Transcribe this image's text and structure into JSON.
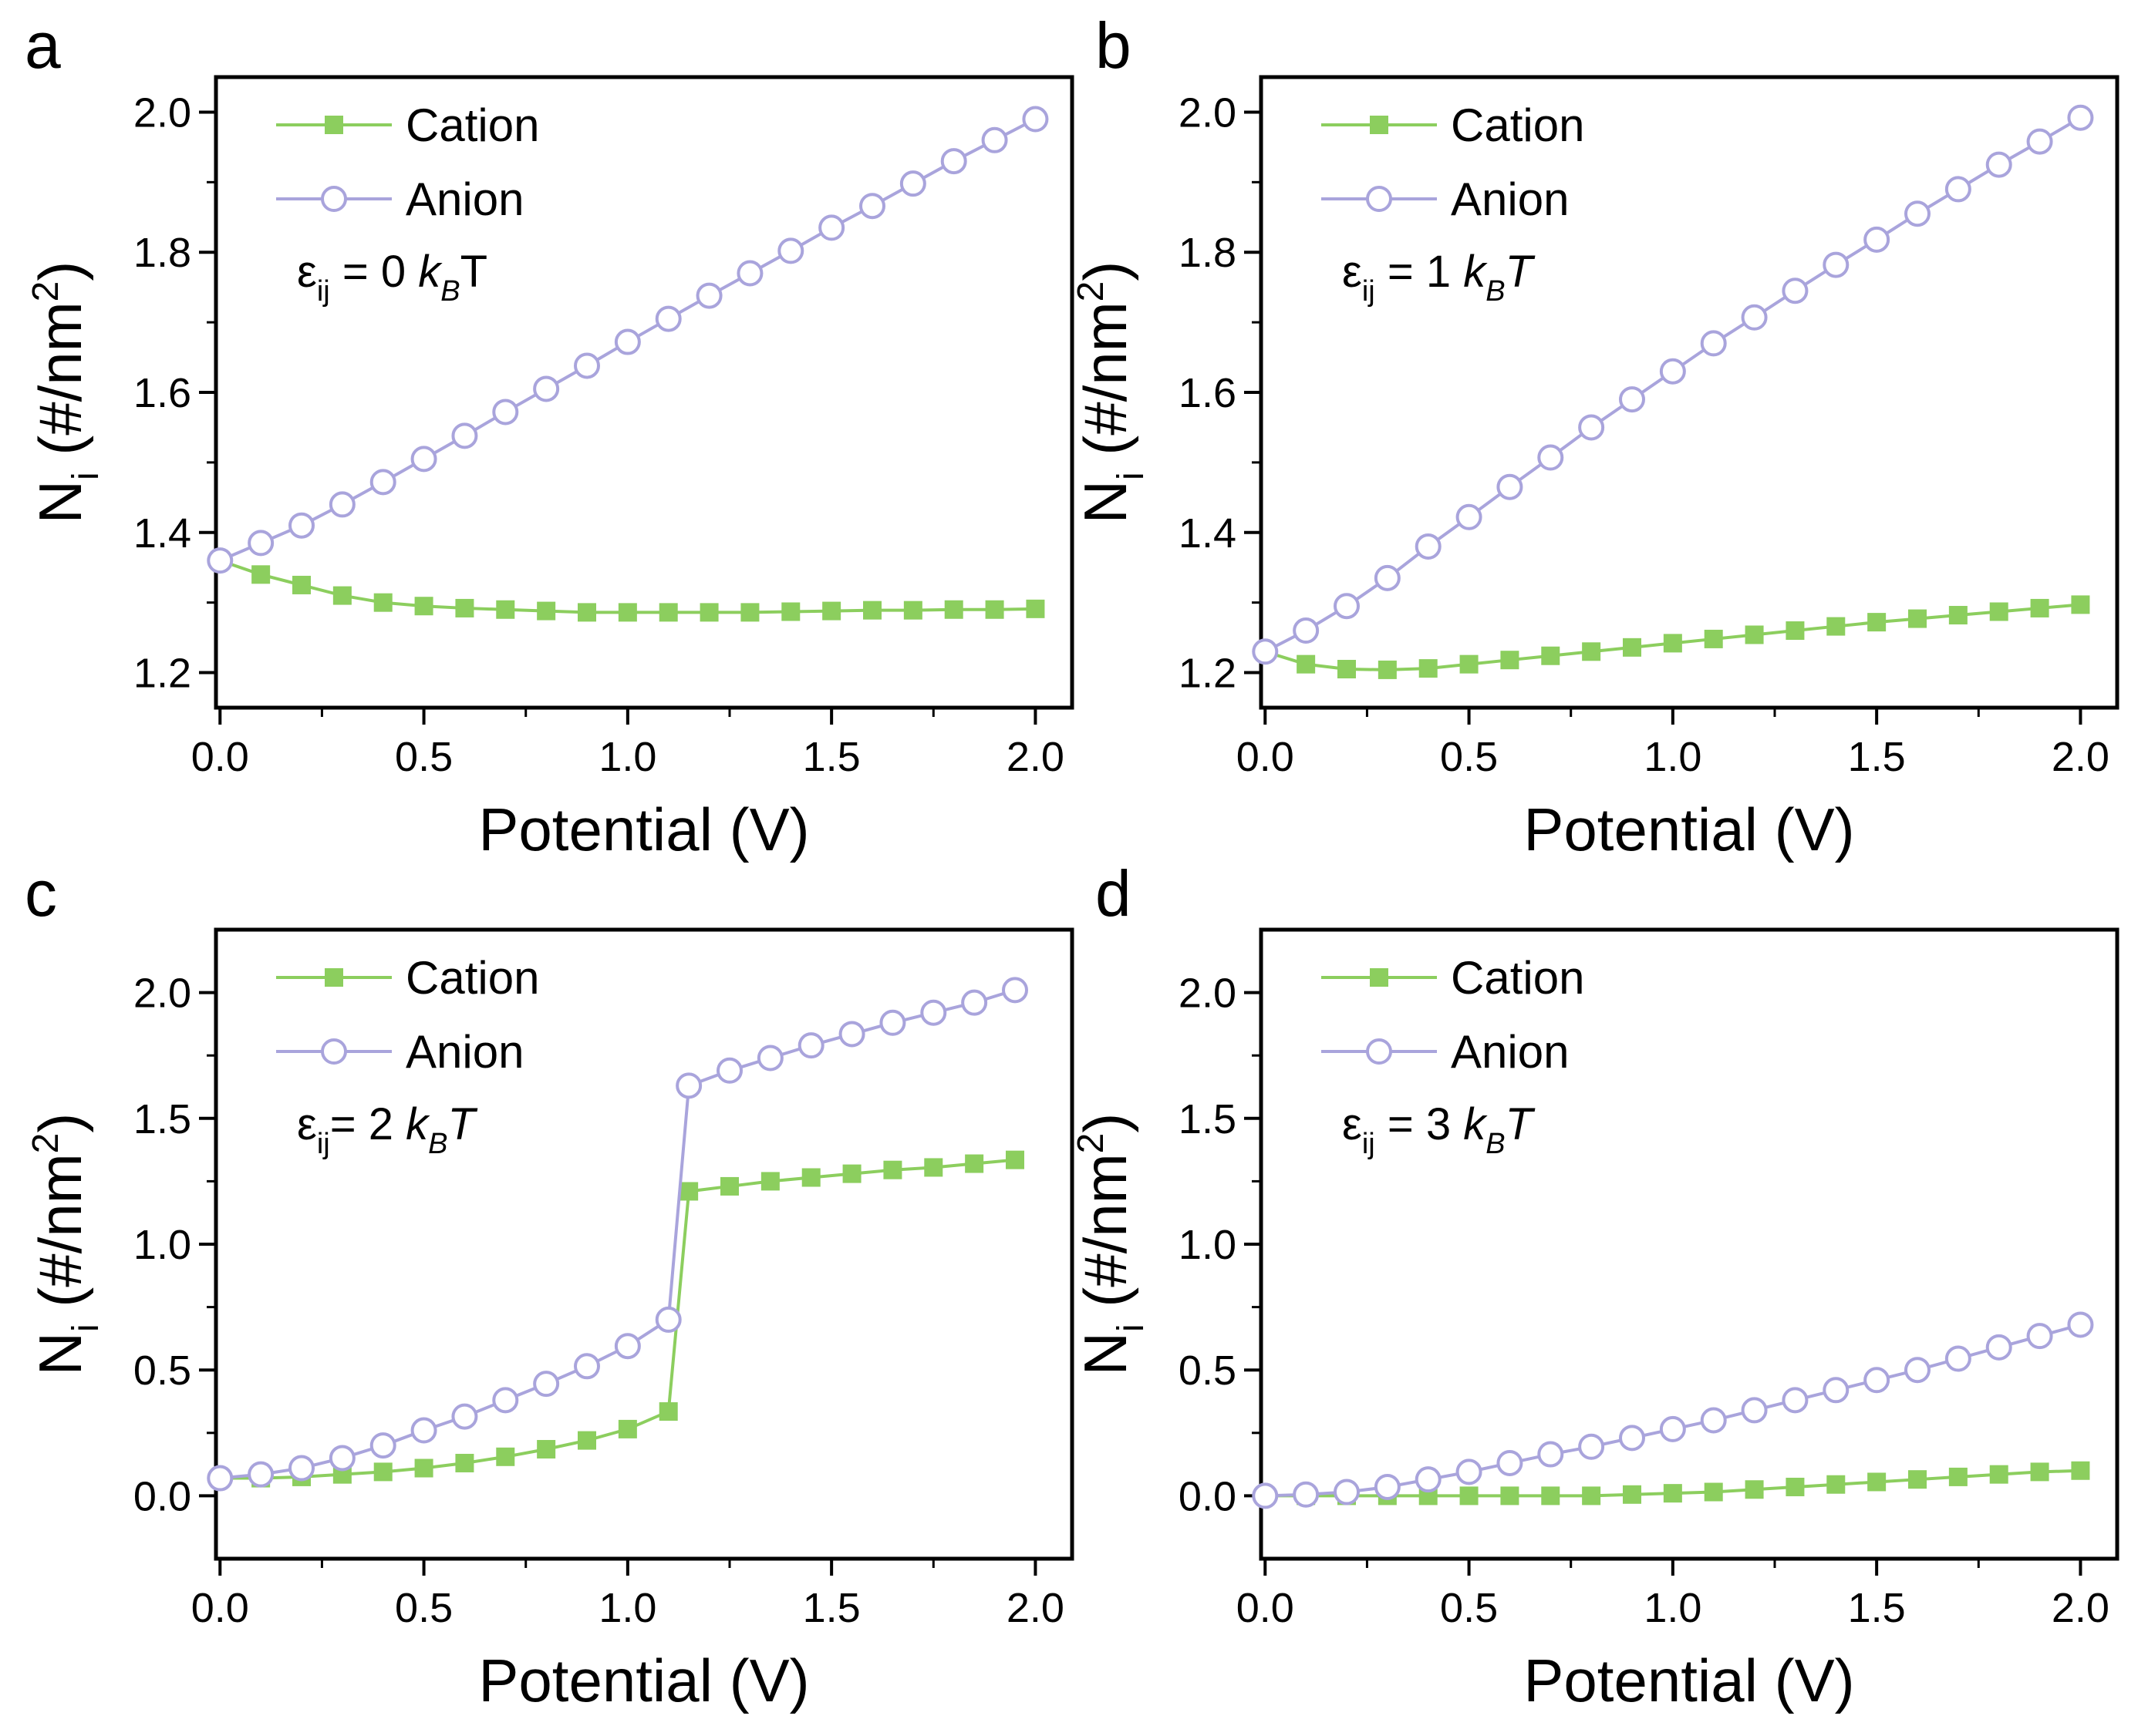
{
  "chart_data": [
    {
      "type": "line",
      "panel": "a",
      "xlabel": "Potential (V)",
      "ylabel": "N_i (#/nm^2)",
      "ylabel_main": "N",
      "ylabel_sub": "i",
      "ylabel_unit": " (#/nm",
      "ylabel_sup": "2",
      "ylabel_close": ")",
      "xlim": [
        -0.01,
        2.09
      ],
      "ylim": [
        1.15,
        2.05
      ],
      "xticks": [
        "0.0",
        "0.5",
        "1.0",
        "1.5",
        "2.0"
      ],
      "yticks": [
        "1.2",
        "1.4",
        "1.6",
        "1.8",
        "2.0"
      ],
      "annotation": {
        "eps": "ε",
        "sub": "ij",
        "eq": " = 0 ",
        "k": "k",
        "ksub": "B",
        "t": "T",
        "t_italic": false
      },
      "series": [
        {
          "name": "Cation",
          "marker": "filled-square",
          "color": "#8cce5e",
          "x": [
            0.0,
            0.1,
            0.2,
            0.3,
            0.4,
            0.5,
            0.6,
            0.7,
            0.8,
            0.9,
            1.0,
            1.1,
            1.2,
            1.3,
            1.4,
            1.5,
            1.6,
            1.7,
            1.8,
            1.9,
            2.0
          ],
          "y": [
            1.36,
            1.34,
            1.325,
            1.31,
            1.3,
            1.295,
            1.292,
            1.29,
            1.288,
            1.286,
            1.286,
            1.286,
            1.286,
            1.286,
            1.287,
            1.288,
            1.289,
            1.289,
            1.29,
            1.29,
            1.291
          ]
        },
        {
          "name": "Anion",
          "marker": "open-circle",
          "color": "#a9a4dc",
          "x": [
            0.0,
            0.1,
            0.2,
            0.3,
            0.4,
            0.5,
            0.6,
            0.7,
            0.8,
            0.9,
            1.0,
            1.1,
            1.2,
            1.3,
            1.4,
            1.5,
            1.6,
            1.7,
            1.8,
            1.9,
            2.0
          ],
          "y": [
            1.36,
            1.385,
            1.41,
            1.44,
            1.472,
            1.505,
            1.538,
            1.572,
            1.605,
            1.638,
            1.672,
            1.705,
            1.738,
            1.77,
            1.802,
            1.835,
            1.866,
            1.898,
            1.93,
            1.96,
            1.99
          ]
        }
      ]
    },
    {
      "type": "line",
      "panel": "b",
      "xlabel": "Potential (V)",
      "ylabel": "N_i (#/nm^2)",
      "ylabel_main": "N",
      "ylabel_sub": "i",
      "ylabel_unit": " (#/nm",
      "ylabel_sup": "2",
      "ylabel_close": ")",
      "xlim": [
        -0.01,
        2.09
      ],
      "ylim": [
        1.15,
        2.05
      ],
      "xticks": [
        "0.0",
        "0.5",
        "1.0",
        "1.5",
        "2.0"
      ],
      "yticks": [
        "1.2",
        "1.4",
        "1.6",
        "1.8",
        "2.0"
      ],
      "annotation": {
        "eps": "ε",
        "sub": "ij",
        "eq": " = 1 ",
        "k": "k",
        "ksub": "B",
        "t": "T",
        "t_italic": true
      },
      "series": [
        {
          "name": "Cation",
          "marker": "filled-square",
          "color": "#8cce5e",
          "x": [
            0.0,
            0.1,
            0.2,
            0.3,
            0.4,
            0.5,
            0.6,
            0.7,
            0.8,
            0.9,
            1.0,
            1.1,
            1.2,
            1.3,
            1.4,
            1.5,
            1.6,
            1.7,
            1.8,
            1.9,
            2.0
          ],
          "y": [
            1.23,
            1.212,
            1.205,
            1.204,
            1.206,
            1.212,
            1.218,
            1.224,
            1.23,
            1.236,
            1.242,
            1.248,
            1.254,
            1.26,
            1.266,
            1.272,
            1.277,
            1.282,
            1.287,
            1.292,
            1.297
          ]
        },
        {
          "name": "Anion",
          "marker": "open-circle",
          "color": "#a9a4dc",
          "x": [
            0.0,
            0.1,
            0.2,
            0.3,
            0.4,
            0.5,
            0.6,
            0.7,
            0.8,
            0.9,
            1.0,
            1.1,
            1.2,
            1.3,
            1.4,
            1.5,
            1.6,
            1.7,
            1.8,
            1.9,
            2.0
          ],
          "y": [
            1.23,
            1.26,
            1.295,
            1.335,
            1.38,
            1.422,
            1.465,
            1.507,
            1.55,
            1.59,
            1.63,
            1.67,
            1.707,
            1.745,
            1.782,
            1.818,
            1.855,
            1.89,
            1.925,
            1.958,
            1.992
          ]
        }
      ]
    },
    {
      "type": "line",
      "panel": "c",
      "xlabel": "Potential (V)",
      "ylabel": "N_i (#/nm^2)",
      "ylabel_main": "N",
      "ylabel_sub": "i",
      "ylabel_unit": " (#/nm",
      "ylabel_sup": "2",
      "ylabel_close": ")",
      "xlim": [
        -0.01,
        2.09
      ],
      "ylim": [
        -0.25,
        2.25
      ],
      "xticks": [
        "0.0",
        "0.5",
        "1.0",
        "1.5",
        "2.0"
      ],
      "yticks": [
        "0.0",
        "0.5",
        "1.0",
        "1.5",
        "2.0"
      ],
      "annotation": {
        "eps": "ε",
        "sub": "ij",
        "eq": "= 2 ",
        "k": "k",
        "ksub": "B",
        "t": "T",
        "t_italic": true
      },
      "series": [
        {
          "name": "Cation",
          "marker": "filled-square",
          "color": "#8cce5e",
          "x": [
            0.0,
            0.1,
            0.2,
            0.3,
            0.4,
            0.5,
            0.6,
            0.7,
            0.8,
            0.9,
            1.0,
            1.1,
            1.15,
            1.25,
            1.35,
            1.45,
            1.55,
            1.65,
            1.75,
            1.85,
            1.95
          ],
          "y": [
            0.07,
            0.07,
            0.075,
            0.085,
            0.095,
            0.11,
            0.13,
            0.155,
            0.185,
            0.22,
            0.265,
            0.335,
            1.21,
            1.23,
            1.25,
            1.265,
            1.28,
            1.295,
            1.305,
            1.32,
            1.335
          ]
        },
        {
          "name": "Anion",
          "marker": "open-circle",
          "color": "#a9a4dc",
          "x": [
            0.0,
            0.1,
            0.2,
            0.3,
            0.4,
            0.5,
            0.6,
            0.7,
            0.8,
            0.9,
            1.0,
            1.1,
            1.15,
            1.25,
            1.35,
            1.45,
            1.55,
            1.65,
            1.75,
            1.85,
            1.95
          ],
          "y": [
            0.07,
            0.085,
            0.11,
            0.15,
            0.2,
            0.26,
            0.315,
            0.38,
            0.445,
            0.515,
            0.595,
            0.7,
            1.63,
            1.69,
            1.74,
            1.79,
            1.835,
            1.88,
            1.92,
            1.96,
            2.01
          ]
        }
      ]
    },
    {
      "type": "line",
      "panel": "d",
      "xlabel": "Potential (V)",
      "ylabel": "N_i (#/nm^2)",
      "ylabel_main": "N",
      "ylabel_sub": "i",
      "ylabel_unit": " (#/nm",
      "ylabel_sup": "2",
      "ylabel_close": ")",
      "xlim": [
        -0.01,
        2.09
      ],
      "ylim": [
        -0.25,
        2.25
      ],
      "xticks": [
        "0.0",
        "0.5",
        "1.0",
        "1.5",
        "2.0"
      ],
      "yticks": [
        "0.0",
        "0.5",
        "1.0",
        "1.5",
        "2.0"
      ],
      "annotation": {
        "eps": "ε",
        "sub": "ij",
        "eq": " = 3 ",
        "k": "k",
        "ksub": "B",
        "t": "T",
        "t_italic": true
      },
      "series": [
        {
          "name": "Cation",
          "marker": "filled-square",
          "color": "#8cce5e",
          "x": [
            0.0,
            0.1,
            0.2,
            0.3,
            0.4,
            0.5,
            0.6,
            0.7,
            0.8,
            0.9,
            1.0,
            1.1,
            1.2,
            1.3,
            1.4,
            1.5,
            1.6,
            1.7,
            1.8,
            1.9,
            2.0
          ],
          "y": [
            0.0,
            0.0,
            0.0,
            0.0,
            0.0,
            0.0,
            0.0,
            0.0,
            0.0,
            0.005,
            0.01,
            0.015,
            0.025,
            0.035,
            0.045,
            0.055,
            0.065,
            0.075,
            0.085,
            0.095,
            0.1
          ]
        },
        {
          "name": "Anion",
          "marker": "open-circle",
          "color": "#a9a4dc",
          "x": [
            0.0,
            0.1,
            0.2,
            0.3,
            0.4,
            0.5,
            0.6,
            0.7,
            0.8,
            0.9,
            1.0,
            1.1,
            1.2,
            1.3,
            1.4,
            1.5,
            1.6,
            1.7,
            1.8,
            1.9,
            2.0
          ],
          "y": [
            0.0,
            0.005,
            0.015,
            0.035,
            0.065,
            0.095,
            0.13,
            0.165,
            0.195,
            0.23,
            0.265,
            0.3,
            0.34,
            0.38,
            0.42,
            0.46,
            0.5,
            0.545,
            0.59,
            0.635,
            0.68
          ]
        }
      ]
    }
  ]
}
